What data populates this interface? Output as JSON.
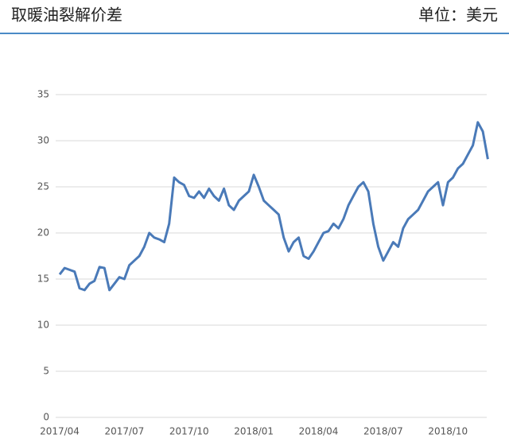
{
  "chart_data": {
    "type": "line",
    "title": "取暖油裂解价差",
    "unit_label": "单位：美元",
    "categories": [
      "2017/04",
      null,
      null,
      null,
      null,
      null,
      null,
      null,
      null,
      null,
      null,
      null,
      null,
      "2017/07",
      null,
      null,
      null,
      null,
      null,
      null,
      null,
      null,
      null,
      null,
      null,
      null,
      "2017/10",
      null,
      null,
      null,
      null,
      null,
      null,
      null,
      null,
      null,
      null,
      null,
      null,
      "2018/01",
      null,
      null,
      null,
      null,
      null,
      null,
      null,
      null,
      null,
      null,
      null,
      null,
      "2018/04",
      null,
      null,
      null,
      null,
      null,
      null,
      null,
      null,
      null,
      null,
      null,
      null,
      "2018/07",
      null,
      null,
      null,
      null,
      null,
      null,
      null,
      null,
      null,
      null,
      null,
      null,
      "2018/10",
      null,
      null,
      null,
      null,
      null,
      null,
      null,
      null
    ],
    "series": [
      {
        "name": "取暖油裂解价差",
        "color": "#4a7ab8",
        "values": [
          15.5,
          16.2,
          16.0,
          15.8,
          14.0,
          13.8,
          14.5,
          14.8,
          16.3,
          16.2,
          13.8,
          14.5,
          15.2,
          15.0,
          16.5,
          17.0,
          17.5,
          18.5,
          20.0,
          19.5,
          19.3,
          19.0,
          21.0,
          26.0,
          25.5,
          25.2,
          24.0,
          23.8,
          24.5,
          23.8,
          24.8,
          24.0,
          23.5,
          24.8,
          23.0,
          22.5,
          23.5,
          24.0,
          24.5,
          26.3,
          25.0,
          23.5,
          23.0,
          22.5,
          22.0,
          19.5,
          18.0,
          19.0,
          19.5,
          17.5,
          17.2,
          18.0,
          19.0,
          20.0,
          20.2,
          21.0,
          20.5,
          21.5,
          23.0,
          24.0,
          25.0,
          25.5,
          24.5,
          21.0,
          18.5,
          17.0,
          18.0,
          19.0,
          18.5,
          20.5,
          21.5,
          22.0,
          22.5,
          23.5,
          24.5,
          25.0,
          25.5,
          23.0,
          25.5,
          26.0,
          27.0,
          27.5,
          28.5,
          29.5,
          32.0,
          31.0,
          28.0
        ]
      }
    ],
    "ylim": [
      0,
      35
    ],
    "yticks": [
      0,
      5,
      10,
      15,
      20,
      25,
      30,
      35
    ],
    "grid": true
  }
}
